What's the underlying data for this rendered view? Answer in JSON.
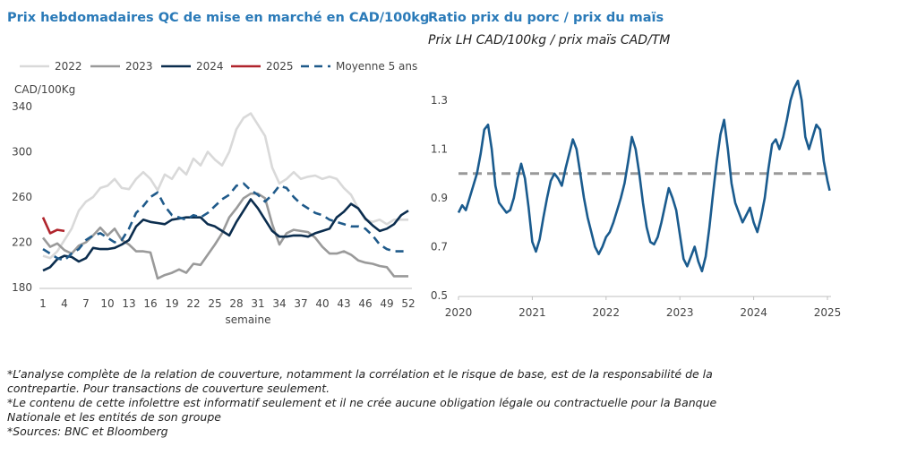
{
  "left_title": "Prix hebdomadaires QC de mise en marché en CAD/100kg",
  "right_title": "Ratio prix du porc / prix du maïs",
  "right_subtitle": "Prix LH CAD/100kg / prix maïs CAD/TM",
  "notes": [
    "*L’analyse complète de la relation de couverture, notamment la corrélation et le risque de base, est de la responsabilité de la contrepartie. Pour transactions de couverture seulement.",
    "*Le contenu de cette infolettre est informatif seulement et il ne crée aucune obligation légale ou contractuelle pour la Banque Nationale et les entités de son groupe",
    "*Sources: BNC et Bloomberg"
  ],
  "chart_data": [
    {
      "type": "line",
      "title": "Prix hebdomadaires QC de mise en marché en CAD/100kg",
      "ylabel": "CAD/100Kg",
      "xlabel": "semaine",
      "ylim": [
        180,
        340
      ],
      "yticks": [
        180,
        220,
        260,
        300,
        340
      ],
      "xticks": [
        1,
        4,
        7,
        10,
        13,
        16,
        19,
        22,
        25,
        28,
        31,
        34,
        37,
        40,
        43,
        46,
        49,
        52
      ],
      "legend": "top",
      "grid": false,
      "series": [
        {
          "name": "2022",
          "color": "#d9d9d9",
          "dash": "",
          "x_start": 1,
          "values": [
            208,
            206,
            212,
            222,
            232,
            248,
            256,
            260,
            268,
            270,
            276,
            268,
            267,
            276,
            282,
            276,
            266,
            280,
            276,
            286,
            280,
            294,
            288,
            300,
            293,
            288,
            300,
            320,
            330,
            334,
            324,
            314,
            286,
            272,
            276,
            282,
            276,
            278,
            279,
            276,
            278,
            276,
            268,
            262,
            250,
            240,
            238,
            240,
            236,
            240,
            240,
            240
          ]
        },
        {
          "name": "2023",
          "color": "#9a9a9a",
          "dash": "",
          "x_start": 1,
          "values": [
            224,
            216,
            219,
            213,
            210,
            217,
            220,
            226,
            233,
            226,
            232,
            222,
            218,
            212,
            212,
            211,
            188,
            191,
            193,
            196,
            193,
            201,
            200,
            209,
            218,
            228,
            242,
            250,
            259,
            263,
            263,
            259,
            236,
            218,
            228,
            231,
            230,
            229,
            224,
            216,
            210,
            210,
            212,
            209,
            204,
            202,
            201,
            199,
            198,
            190,
            190,
            190
          ]
        },
        {
          "name": "2024",
          "color": "#0b2d4e",
          "dash": "",
          "x_start": 1,
          "values": [
            195,
            198,
            205,
            208,
            207,
            203,
            206,
            215,
            214,
            214,
            215,
            218,
            222,
            234,
            240,
            238,
            237,
            236,
            240,
            241,
            242,
            242,
            242,
            236,
            234,
            230,
            226,
            238,
            248,
            258,
            250,
            240,
            230,
            225,
            225,
            226,
            226,
            225,
            228,
            230,
            232,
            242,
            247,
            254,
            250,
            241,
            235,
            230,
            232,
            236,
            244,
            248
          ]
        },
        {
          "name": "2025",
          "color": "#b0242c",
          "dash": "",
          "x_start": 1,
          "values": [
            242,
            228,
            231,
            230
          ]
        },
        {
          "name": "Moyenne 5 ans",
          "color": "#1f5a8a",
          "dash": "9,6",
          "x_start": 1,
          "values": [
            214,
            210,
            206,
            204,
            210,
            214,
            222,
            226,
            228,
            224,
            220,
            222,
            232,
            246,
            252,
            260,
            264,
            252,
            244,
            242,
            240,
            244,
            242,
            246,
            252,
            258,
            262,
            270,
            272,
            266,
            262,
            256,
            262,
            270,
            268,
            260,
            254,
            250,
            246,
            244,
            240,
            238,
            236,
            234,
            234,
            232,
            226,
            218,
            214,
            212,
            212,
            212
          ]
        }
      ]
    },
    {
      "type": "line",
      "title": "Ratio prix du porc / prix du maïs",
      "subtitle": "Prix LH CAD/100kg / prix maïs CAD/TM",
      "ylim": [
        0.5,
        1.4
      ],
      "yticks": [
        0.5,
        0.7,
        0.9,
        1.1,
        1.3
      ],
      "xlim": [
        2020.0,
        2025.05
      ],
      "xticks": [
        "2020",
        "2021",
        "2022",
        "2023",
        "2024",
        "2025"
      ],
      "grid": false,
      "reference_line": {
        "y": 1.0,
        "color": "#999999",
        "dash": "10,6"
      },
      "series": [
        {
          "name": "",
          "color": "#1a5b8e",
          "x": [
            2020.0,
            2020.05,
            2020.1,
            2020.15,
            2020.2,
            2020.25,
            2020.3,
            2020.35,
            2020.4,
            2020.45,
            2020.5,
            2020.55,
            2020.6,
            2020.65,
            2020.7,
            2020.75,
            2020.8,
            2020.85,
            2020.9,
            2020.95,
            2021.0,
            2021.05,
            2021.1,
            2021.15,
            2021.2,
            2021.25,
            2021.3,
            2021.35,
            2021.4,
            2021.45,
            2021.5,
            2021.55,
            2021.6,
            2021.65,
            2021.7,
            2021.75,
            2021.8,
            2021.85,
            2021.9,
            2021.95,
            2022.0,
            2022.05,
            2022.1,
            2022.15,
            2022.2,
            2022.25,
            2022.3,
            2022.35,
            2022.4,
            2022.45,
            2022.5,
            2022.55,
            2022.6,
            2022.65,
            2022.7,
            2022.75,
            2022.8,
            2022.85,
            2022.9,
            2022.95,
            2023.0,
            2023.05,
            2023.1,
            2023.15,
            2023.2,
            2023.25,
            2023.3,
            2023.35,
            2023.4,
            2023.45,
            2023.5,
            2023.55,
            2023.6,
            2023.65,
            2023.7,
            2023.75,
            2023.8,
            2023.85,
            2023.9,
            2023.95,
            2024.0,
            2024.05,
            2024.1,
            2024.15,
            2024.2,
            2024.25,
            2024.3,
            2024.35,
            2024.4,
            2024.45,
            2024.5,
            2024.55,
            2024.6,
            2024.65,
            2024.7,
            2024.75,
            2024.8,
            2024.85,
            2024.9,
            2024.95,
            2025.0,
            2025.03
          ],
          "values": [
            0.84,
            0.87,
            0.85,
            0.9,
            0.95,
            1.0,
            1.08,
            1.18,
            1.2,
            1.1,
            0.95,
            0.88,
            0.86,
            0.84,
            0.85,
            0.9,
            0.98,
            1.04,
            0.98,
            0.86,
            0.72,
            0.68,
            0.73,
            0.82,
            0.9,
            0.97,
            1.0,
            0.98,
            0.95,
            1.02,
            1.08,
            1.14,
            1.1,
            1.0,
            0.9,
            0.82,
            0.76,
            0.7,
            0.67,
            0.7,
            0.74,
            0.76,
            0.8,
            0.85,
            0.9,
            0.96,
            1.05,
            1.15,
            1.1,
            1.0,
            0.88,
            0.78,
            0.72,
            0.71,
            0.74,
            0.8,
            0.87,
            0.94,
            0.9,
            0.85,
            0.75,
            0.65,
            0.62,
            0.66,
            0.7,
            0.64,
            0.6,
            0.66,
            0.78,
            0.92,
            1.05,
            1.16,
            1.22,
            1.1,
            0.96,
            0.88,
            0.84,
            0.8,
            0.83,
            0.86,
            0.8,
            0.76,
            0.82,
            0.9,
            1.02,
            1.12,
            1.14,
            1.1,
            1.15,
            1.22,
            1.3,
            1.35,
            1.38,
            1.3,
            1.15,
            1.1,
            1.15,
            1.2,
            1.18,
            1.05,
            0.97,
            0.93
          ]
        }
      ]
    }
  ],
  "legend_items": [
    "2022",
    "2023",
    "2024",
    "2025",
    "Moyenne 5 ans"
  ],
  "colors": {
    "title": "#2a7ab8",
    "axis": "#bfbfbf"
  }
}
